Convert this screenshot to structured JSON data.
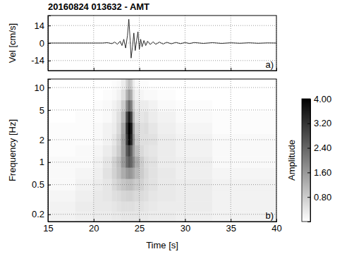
{
  "chart_data": [
    {
      "type": "line",
      "title": "20160824 013632 - AMT",
      "y_label": "Vel [cm/s]",
      "panel_label": "a)",
      "color": "#000000",
      "x": [
        15,
        18,
        20,
        21,
        21.5,
        22,
        22.3,
        22.6,
        22.9,
        23.1,
        23.3,
        23.5,
        23.7,
        23.85,
        24.0,
        24.1,
        24.25,
        24.4,
        24.55,
        24.7,
        24.85,
        25.0,
        25.15,
        25.3,
        25.5,
        25.7,
        25.9,
        26.2,
        26.5,
        26.8,
        27.2,
        27.6,
        28,
        28.5,
        29,
        29.5,
        30,
        30.5,
        31,
        32,
        33,
        34,
        35,
        36,
        37,
        38,
        39,
        40
      ],
      "y": [
        0,
        0,
        0,
        0,
        0.3,
        -0.5,
        0.8,
        -1,
        1.5,
        -2,
        3,
        -4,
        6,
        19,
        2,
        -12,
        -3,
        8,
        -6,
        2,
        9,
        -5,
        3,
        -3,
        2,
        -2,
        1.5,
        -1.2,
        1,
        -1,
        0.8,
        -0.8,
        0.6,
        -0.6,
        0.5,
        -0.5,
        0.4,
        -0.4,
        0.4,
        -0.3,
        0.3,
        -0.3,
        0.2,
        -0.2,
        0.2,
        -0.2,
        0.1,
        0
      ],
      "xlim": [
        15,
        40
      ],
      "xticks": [
        15,
        20,
        25,
        30,
        35,
        40
      ],
      "ylim": [
        -22,
        22
      ],
      "yticks": [
        -14,
        0,
        14
      ],
      "grid": true,
      "tick_labels": "y"
    },
    {
      "type": "heatmap",
      "x_label": "Time [s]",
      "y_label": "Frequency [Hz]",
      "panel_label": "b)",
      "log": "y",
      "xlim": [
        15,
        40
      ],
      "xticks": [
        15,
        20,
        25,
        30,
        35,
        40
      ],
      "ylim": [
        0.16,
        13
      ],
      "yticks": [
        0.2,
        0.5,
        1,
        2,
        5,
        10
      ],
      "grid": true,
      "x_edges": [
        15,
        18,
        20,
        21,
        22,
        22.5,
        23,
        23.5,
        23.75,
        24,
        24.25,
        24.5,
        25,
        25.5,
        26,
        27,
        29,
        33,
        40
      ],
      "y_edges": [
        0.16,
        0.22,
        0.3,
        0.42,
        0.6,
        0.85,
        1.2,
        1.7,
        2.4,
        3.4,
        4.8,
        6.8,
        9.5,
        13
      ],
      "z": [
        [
          0.2,
          0.25,
          0.3,
          0.3,
          0.35,
          0.35,
          0.4,
          0.4,
          0.4,
          0.4,
          0.4,
          0.4,
          0.35,
          0.35,
          0.3,
          0.3,
          0.25,
          0.2
        ],
        [
          0.2,
          0.3,
          0.35,
          0.35,
          0.4,
          0.45,
          0.5,
          0.5,
          0.5,
          0.5,
          0.5,
          0.45,
          0.45,
          0.4,
          0.35,
          0.3,
          0.3,
          0.2
        ],
        [
          0.15,
          0.25,
          0.35,
          0.4,
          0.5,
          0.55,
          0.65,
          0.7,
          0.7,
          0.7,
          0.65,
          0.6,
          0.55,
          0.5,
          0.4,
          0.35,
          0.3,
          0.2
        ],
        [
          0.1,
          0.2,
          0.3,
          0.4,
          0.6,
          0.75,
          0.9,
          1.0,
          1.0,
          1.0,
          0.9,
          0.8,
          0.7,
          0.55,
          0.45,
          0.35,
          0.3,
          0.2
        ],
        [
          0.1,
          0.15,
          0.25,
          0.45,
          0.7,
          0.95,
          1.3,
          1.6,
          1.7,
          1.6,
          1.4,
          1.1,
          0.8,
          0.6,
          0.45,
          0.35,
          0.25,
          0.15
        ],
        [
          0.1,
          0.1,
          0.2,
          0.4,
          0.7,
          1.0,
          1.6,
          2.3,
          2.6,
          2.4,
          1.9,
          1.3,
          0.8,
          0.55,
          0.45,
          0.3,
          0.25,
          0.1
        ],
        [
          0.05,
          0.1,
          0.15,
          0.3,
          0.5,
          0.8,
          1.5,
          2.6,
          3.0,
          2.5,
          1.6,
          1.0,
          0.6,
          0.45,
          0.4,
          0.3,
          0.2,
          0.1
        ],
        [
          0.05,
          0.05,
          0.1,
          0.2,
          0.4,
          0.7,
          1.5,
          3.0,
          3.9,
          3.4,
          1.8,
          0.8,
          0.5,
          0.5,
          0.45,
          0.3,
          0.2,
          0.1
        ],
        [
          0.05,
          0.05,
          0.1,
          0.2,
          0.3,
          0.6,
          1.4,
          3.2,
          4.0,
          3.6,
          1.6,
          0.7,
          0.5,
          0.55,
          0.4,
          0.25,
          0.15,
          0.05
        ],
        [
          0.0,
          0.05,
          0.05,
          0.1,
          0.25,
          0.5,
          1.1,
          2.8,
          3.6,
          3.0,
          1.2,
          0.5,
          0.4,
          0.45,
          0.3,
          0.2,
          0.1,
          0.05
        ],
        [
          0.0,
          0.0,
          0.05,
          0.1,
          0.2,
          0.35,
          0.8,
          1.8,
          2.4,
          2.0,
          0.8,
          0.35,
          0.3,
          0.3,
          0.2,
          0.1,
          0.05,
          0.0
        ],
        [
          0.0,
          0.0,
          0.0,
          0.05,
          0.1,
          0.2,
          0.5,
          1.2,
          1.6,
          1.3,
          0.5,
          0.2,
          0.15,
          0.1,
          0.1,
          0.05,
          0.0,
          0.0
        ],
        [
          0.0,
          0.0,
          0.0,
          0.0,
          0.05,
          0.1,
          0.3,
          0.7,
          1.0,
          0.8,
          0.3,
          0.1,
          0.05,
          0.05,
          0.0,
          0.0,
          0.0,
          0.0
        ]
      ],
      "colorbar": {
        "label": "Amplitude",
        "range": [
          0,
          4
        ],
        "ticks": [
          {
            "value": 0.8,
            "label": "0.80"
          },
          {
            "value": 1.6,
            "label": "1.60"
          },
          {
            "value": 2.4,
            "label": "2.40"
          },
          {
            "value": 3.2,
            "label": "3.20"
          },
          {
            "value": 4.0,
            "label": "4.00"
          }
        ]
      }
    }
  ]
}
